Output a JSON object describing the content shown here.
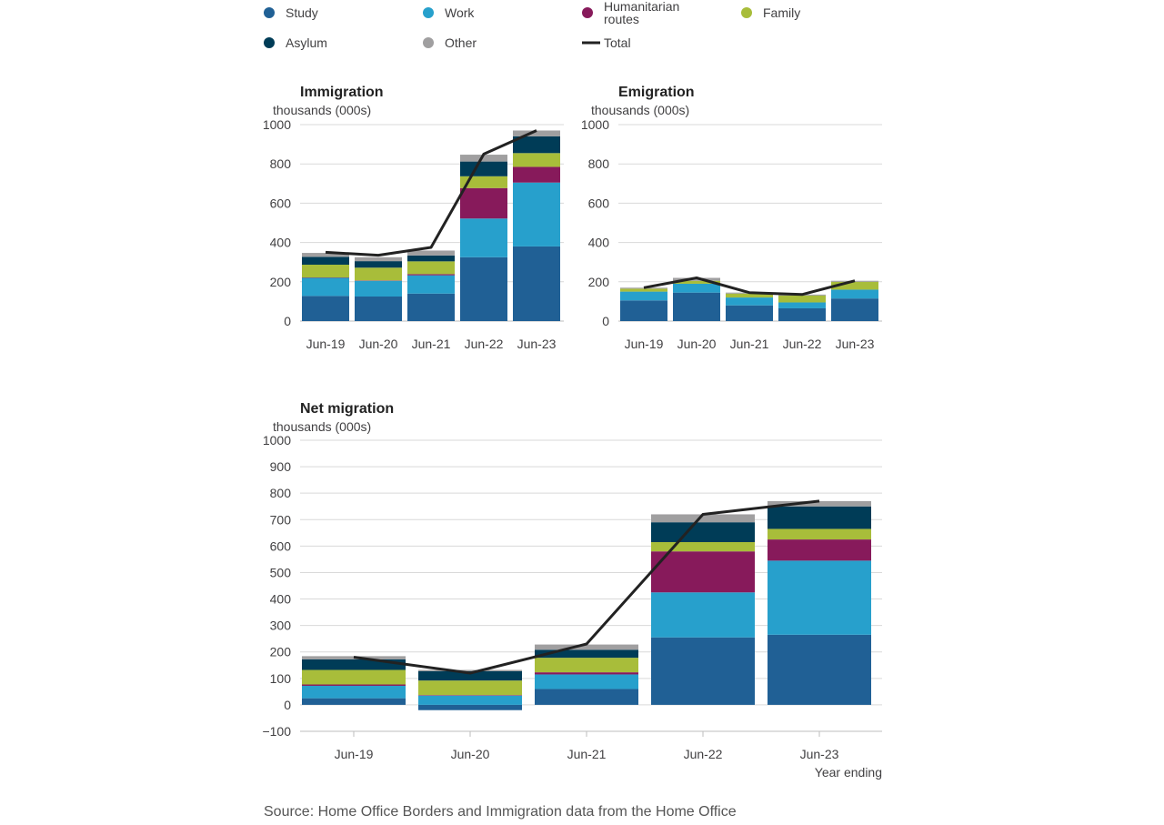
{
  "legend": [
    {
      "key": "study",
      "label": "Study",
      "color": "#206095",
      "shape": "dot"
    },
    {
      "key": "work",
      "label": "Work",
      "color": "#27a0cc",
      "shape": "dot"
    },
    {
      "key": "humanitarian",
      "label": "Humanitarian routes",
      "color": "#871a5b",
      "shape": "dot"
    },
    {
      "key": "family",
      "label": "Family",
      "color": "#a8bd3a",
      "shape": "dot"
    },
    {
      "key": "asylum",
      "label": "Asylum",
      "color": "#003c57",
      "shape": "dot"
    },
    {
      "key": "other",
      "label": "Other",
      "color": "#a09fa0",
      "shape": "dot"
    },
    {
      "key": "total",
      "label": "Total",
      "color": "#222222",
      "shape": "line"
    }
  ],
  "source": "Source: Home Office Borders and Immigration data from the Home Office",
  "chart_data": [
    {
      "id": "immigration",
      "type": "bar",
      "stacked": true,
      "title": "Immigration",
      "ylabel": "thousands (000s)",
      "xlabel": "",
      "ylim": [
        0,
        1000
      ],
      "yticks": [
        0,
        200,
        400,
        600,
        800,
        1000
      ],
      "categories": [
        "Jun-19",
        "Jun-20",
        "Jun-21",
        "Jun-22",
        "Jun-23"
      ],
      "series": [
        {
          "key": "study",
          "values": [
            128,
            125,
            140,
            325,
            380
          ]
        },
        {
          "key": "work",
          "values": [
            92,
            80,
            93,
            197,
            325
          ]
        },
        {
          "key": "humanitarian",
          "values": [
            2,
            2,
            6,
            155,
            80
          ]
        },
        {
          "key": "family",
          "values": [
            65,
            65,
            65,
            60,
            70
          ]
        },
        {
          "key": "asylum",
          "values": [
            40,
            33,
            30,
            75,
            85
          ]
        },
        {
          "key": "other",
          "values": [
            20,
            20,
            25,
            35,
            30
          ]
        }
      ],
      "total": [
        350,
        335,
        375,
        850,
        970
      ]
    },
    {
      "id": "emigration",
      "type": "bar",
      "stacked": true,
      "title": "Emigration",
      "ylabel": "thousands (000s)",
      "xlabel": "",
      "ylim": [
        0,
        1000
      ],
      "yticks": [
        0,
        200,
        400,
        600,
        800,
        1000
      ],
      "categories": [
        "Jun-19",
        "Jun-20",
        "Jun-21",
        "Jun-22",
        "Jun-23"
      ],
      "series": [
        {
          "key": "study",
          "values": [
            105,
            145,
            80,
            65,
            115
          ]
        },
        {
          "key": "work",
          "values": [
            45,
            45,
            40,
            30,
            45
          ]
        },
        {
          "key": "humanitarian",
          "values": [
            0,
            0,
            0,
            0,
            0
          ]
        },
        {
          "key": "family",
          "values": [
            15,
            15,
            20,
            35,
            40
          ]
        },
        {
          "key": "asylum",
          "values": [
            0,
            0,
            0,
            0,
            0
          ]
        },
        {
          "key": "other",
          "values": [
            5,
            15,
            5,
            5,
            5
          ]
        }
      ],
      "total": [
        170,
        220,
        145,
        135,
        205
      ]
    },
    {
      "id": "net",
      "type": "bar",
      "stacked": true,
      "title": "Net migration",
      "ylabel": "thousands (000s)",
      "xlabel": "Year ending",
      "ylim": [
        -100,
        1000
      ],
      "yticks": [
        -100,
        0,
        100,
        200,
        300,
        400,
        500,
        600,
        700,
        800,
        900,
        1000
      ],
      "categories": [
        "Jun-19",
        "Jun-20",
        "Jun-21",
        "Jun-22",
        "Jun-23"
      ],
      "series": [
        {
          "key": "study",
          "values": [
            25,
            -20,
            60,
            255,
            265
          ]
        },
        {
          "key": "work",
          "values": [
            47,
            35,
            55,
            170,
            280
          ]
        },
        {
          "key": "humanitarian",
          "values": [
            5,
            2,
            8,
            155,
            80
          ]
        },
        {
          "key": "family",
          "values": [
            55,
            55,
            55,
            35,
            40
          ]
        },
        {
          "key": "asylum",
          "values": [
            40,
            35,
            30,
            75,
            85
          ]
        },
        {
          "key": "other",
          "values": [
            12,
            5,
            20,
            30,
            20
          ]
        }
      ],
      "total": [
        180,
        120,
        230,
        720,
        770
      ]
    }
  ]
}
